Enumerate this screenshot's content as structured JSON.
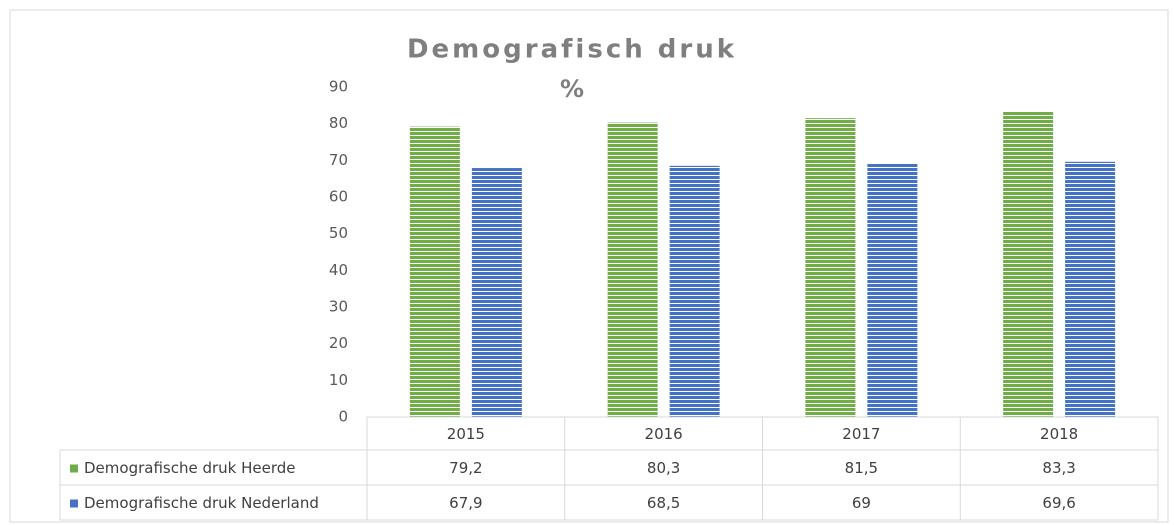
{
  "chart_data": {
    "type": "bar",
    "title": "Demografisch druk",
    "subtitle": "%",
    "categories": [
      "2015",
      "2016",
      "2017",
      "2018"
    ],
    "series": [
      {
        "name": "Demografische druk Heerde",
        "color": "#70ad47",
        "values": [
          79.2,
          80.3,
          81.5,
          83.3
        ],
        "value_labels": [
          "79,2",
          "80,3",
          "81,5",
          "83,3"
        ]
      },
      {
        "name": "Demografische druk Nederland",
        "color": "#4472c4",
        "values": [
          67.9,
          68.5,
          69,
          69.6
        ],
        "value_labels": [
          "67,9",
          "68,5",
          "69",
          "69,6"
        ]
      }
    ],
    "ylim": [
      0,
      90
    ],
    "yticks": [
      0,
      10,
      20,
      30,
      40,
      50,
      60,
      70,
      80,
      90
    ],
    "grid": false
  }
}
